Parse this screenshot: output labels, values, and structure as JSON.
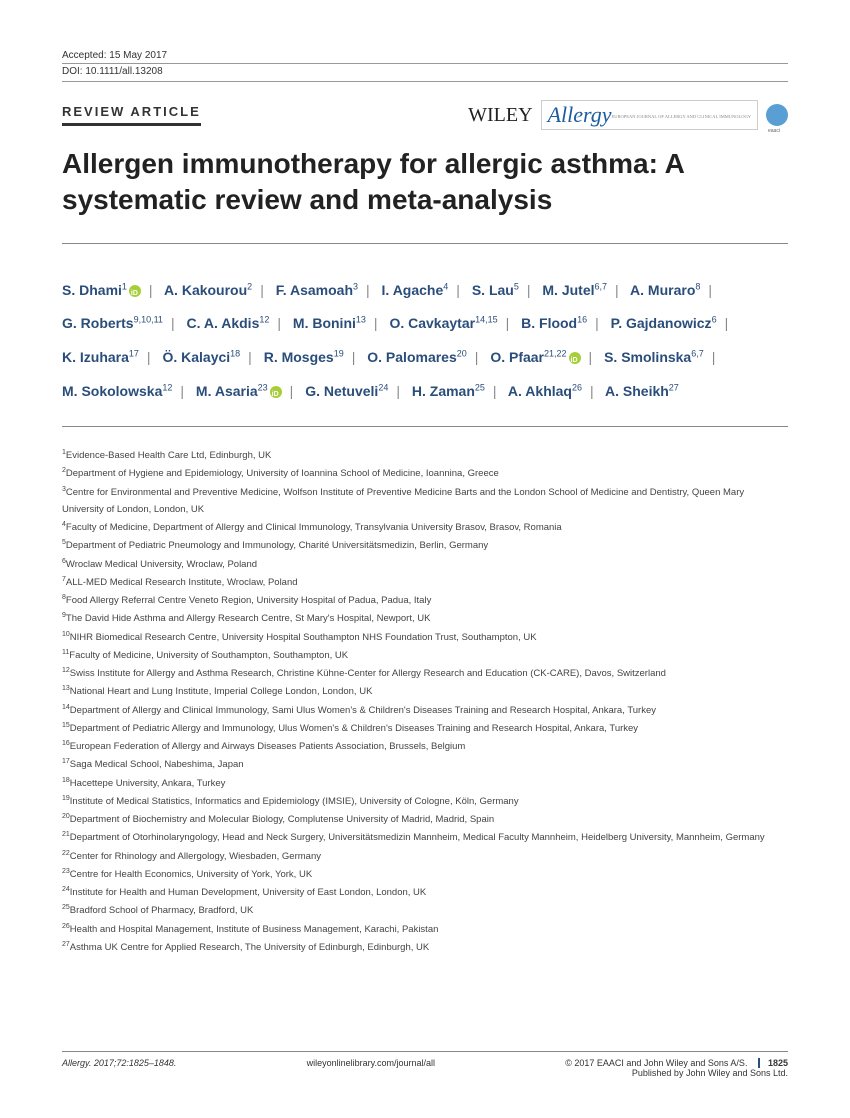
{
  "header": {
    "accepted": "Accepted: 15 May 2017",
    "doi": "DOI: 10.1111/all.13208",
    "article_type": "REVIEW ARTICLE",
    "publisher_wiley": "WILEY",
    "publisher_allergy": "Allergy",
    "allergy_subtitle": "EUROPEAN JOURNAL OF ALLERGY AND CLINICAL IMMUNOLOGY"
  },
  "title": "Allergen immunotherapy for allergic asthma: A systematic review and meta-analysis",
  "authors": [
    {
      "name": "S. Dhami",
      "sup": "1",
      "orcid": true
    },
    {
      "name": "A. Kakourou",
      "sup": "2"
    },
    {
      "name": "F. Asamoah",
      "sup": "3"
    },
    {
      "name": "I. Agache",
      "sup": "4"
    },
    {
      "name": "S. Lau",
      "sup": "5"
    },
    {
      "name": "M. Jutel",
      "sup": "6,7"
    },
    {
      "name": "A. Muraro",
      "sup": "8"
    },
    {
      "name": "G. Roberts",
      "sup": "9,10,11"
    },
    {
      "name": "C. A. Akdis",
      "sup": "12"
    },
    {
      "name": "M. Bonini",
      "sup": "13"
    },
    {
      "name": "O. Cavkaytar",
      "sup": "14,15"
    },
    {
      "name": "B. Flood",
      "sup": "16"
    },
    {
      "name": "P. Gajdanowicz",
      "sup": "6"
    },
    {
      "name": "K. Izuhara",
      "sup": "17"
    },
    {
      "name": "Ö. Kalayci",
      "sup": "18"
    },
    {
      "name": "R. Mosges",
      "sup": "19"
    },
    {
      "name": "O. Palomares",
      "sup": "20"
    },
    {
      "name": "O. Pfaar",
      "sup": "21,22",
      "orcid": true
    },
    {
      "name": "S. Smolinska",
      "sup": "6,7"
    },
    {
      "name": "M. Sokolowska",
      "sup": "12"
    },
    {
      "name": "M. Asaria",
      "sup": "23",
      "orcid": true
    },
    {
      "name": "G. Netuveli",
      "sup": "24"
    },
    {
      "name": "H. Zaman",
      "sup": "25"
    },
    {
      "name": "A. Akhlaq",
      "sup": "26"
    },
    {
      "name": "A. Sheikh",
      "sup": "27"
    }
  ],
  "affiliations": [
    {
      "num": "1",
      "text": "Evidence-Based Health Care Ltd, Edinburgh, UK"
    },
    {
      "num": "2",
      "text": "Department of Hygiene and Epidemiology, University of Ioannina School of Medicine, Ioannina, Greece"
    },
    {
      "num": "3",
      "text": "Centre for Environmental and Preventive Medicine, Wolfson Institute of Preventive Medicine Barts and the London School of Medicine and Dentistry, Queen Mary University of London, London, UK"
    },
    {
      "num": "4",
      "text": "Faculty of Medicine, Department of Allergy and Clinical Immunology, Transylvania University Brasov, Brasov, Romania"
    },
    {
      "num": "5",
      "text": "Department of Pediatric Pneumology and Immunology, Charité Universitätsmedizin, Berlin, Germany"
    },
    {
      "num": "6",
      "text": "Wroclaw Medical University, Wroclaw, Poland"
    },
    {
      "num": "7",
      "text": "ALL-MED Medical Research Institute, Wroclaw, Poland"
    },
    {
      "num": "8",
      "text": "Food Allergy Referral Centre Veneto Region, University Hospital of Padua, Padua, Italy"
    },
    {
      "num": "9",
      "text": "The David Hide Asthma and Allergy Research Centre, St Mary's Hospital, Newport, UK"
    },
    {
      "num": "10",
      "text": "NIHR Biomedical Research Centre, University Hospital Southampton NHS Foundation Trust, Southampton, UK"
    },
    {
      "num": "11",
      "text": "Faculty of Medicine, University of Southampton, Southampton, UK"
    },
    {
      "num": "12",
      "text": "Swiss Institute for Allergy and Asthma Research, Christine Kühne-Center for Allergy Research and Education (CK-CARE), Davos, Switzerland"
    },
    {
      "num": "13",
      "text": "National Heart and Lung Institute, Imperial College London, London, UK"
    },
    {
      "num": "14",
      "text": "Department of Allergy and Clinical Immunology, Sami Ulus Women's & Children's Diseases Training and Research Hospital, Ankara, Turkey"
    },
    {
      "num": "15",
      "text": "Department of Pediatric Allergy and Immunology, Ulus Women's & Children's Diseases Training and Research Hospital, Ankara, Turkey"
    },
    {
      "num": "16",
      "text": "European Federation of Allergy and Airways Diseases Patients Association, Brussels, Belgium"
    },
    {
      "num": "17",
      "text": "Saga Medical School, Nabeshima, Japan"
    },
    {
      "num": "18",
      "text": "Hacettepe University, Ankara, Turkey"
    },
    {
      "num": "19",
      "text": "Institute of Medical Statistics, Informatics and Epidemiology (IMSIE), University of Cologne, Köln, Germany"
    },
    {
      "num": "20",
      "text": "Department of Biochemistry and Molecular Biology, Complutense University of Madrid, Madrid, Spain"
    },
    {
      "num": "21",
      "text": "Department of Otorhinolaryngology, Head and Neck Surgery, Universitätsmedizin Mannheim, Medical Faculty Mannheim, Heidelberg University, Mannheim, Germany"
    },
    {
      "num": "22",
      "text": "Center for Rhinology and Allergology, Wiesbaden, Germany"
    },
    {
      "num": "23",
      "text": "Centre for Health Economics, University of York, York, UK"
    },
    {
      "num": "24",
      "text": "Institute for Health and Human Development, University of East London, London, UK"
    },
    {
      "num": "25",
      "text": "Bradford School of Pharmacy, Bradford, UK"
    },
    {
      "num": "26",
      "text": "Health and Hospital Management, Institute of Business Management, Karachi, Pakistan"
    },
    {
      "num": "27",
      "text": "Asthma UK Centre for Applied Research, The University of Edinburgh, Edinburgh, UK"
    }
  ],
  "footer": {
    "citation": "Allergy. 2017;72:1825–1848.",
    "url": "wileyonlinelibrary.com/journal/all",
    "copyright_line1": "© 2017 EAACI and John Wiley and Sons A/S.",
    "copyright_line2": "Published by John Wiley and Sons Ltd.",
    "page_number": "1825"
  },
  "colors": {
    "author_color": "#2a4d7a",
    "allergy_color": "#1a5c9e",
    "orcid_green": "#a6ce39",
    "text_color": "#333333",
    "border_color": "#888888"
  }
}
